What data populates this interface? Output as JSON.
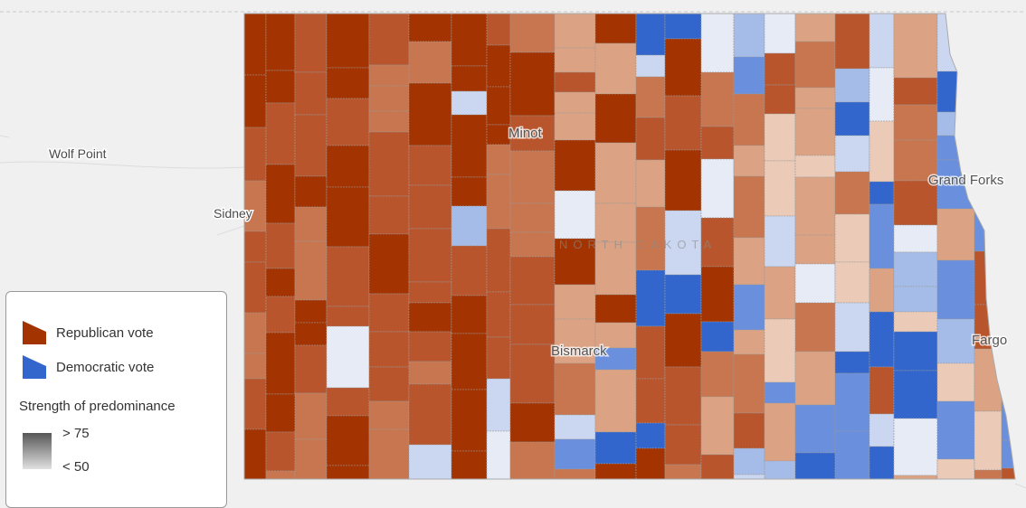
{
  "map": {
    "places": [
      "Wolf Point",
      "Sidney",
      "Minot",
      "Grand Forks",
      "Bismarck",
      "Fargo"
    ],
    "region_label": "NORTH DAKOTA"
  },
  "legend": {
    "items": [
      "Republican vote",
      "Democratic vote"
    ],
    "strength": {
      "title": "Strength of predominance",
      "high": "> 75",
      "low": "< 50"
    }
  }
}
